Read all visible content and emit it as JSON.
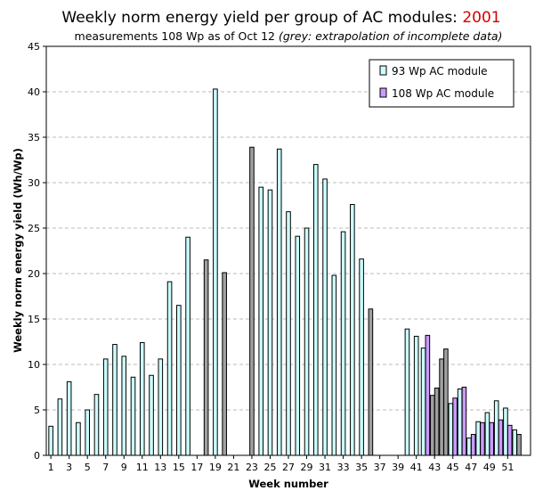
{
  "chart_data": {
    "type": "bar",
    "title": "Weekly norm energy yield per group of AC modules: ",
    "title_year": "2001",
    "subtitle": "measurements 108 Wp as of Oct 12",
    "subtitle_note": "(grey: extrapolation of incomplete data)",
    "xlabel": "Week number",
    "ylabel": "Weekly norm energy yield (Wh/Wp)",
    "ylim": [
      0,
      45
    ],
    "yticks": [
      0,
      5,
      10,
      15,
      20,
      25,
      30,
      35,
      40,
      45
    ],
    "xticks": [
      1,
      3,
      5,
      7,
      9,
      11,
      13,
      15,
      17,
      19,
      21,
      23,
      25,
      27,
      29,
      31,
      33,
      35,
      37,
      39,
      41,
      43,
      45,
      47,
      49,
      51
    ],
    "x_range": [
      1,
      53
    ],
    "grid": "horizontal dashed",
    "legend_position": "top-right",
    "colors": {
      "series_93": "#ccffff",
      "series_108": "#cc99ff",
      "extrapolated": "#a0a0a0",
      "title_year": "#d40000",
      "grid": "#bbbbbb"
    },
    "series": [
      {
        "name": "93 Wp AC module",
        "values": [
          {
            "week": 1,
            "value": 3.2
          },
          {
            "week": 2,
            "value": 6.2
          },
          {
            "week": 3,
            "value": 8.1
          },
          {
            "week": 4,
            "value": 3.6
          },
          {
            "week": 5,
            "value": 5.0
          },
          {
            "week": 6,
            "value": 6.7
          },
          {
            "week": 7,
            "value": 10.6
          },
          {
            "week": 8,
            "value": 12.2
          },
          {
            "week": 9,
            "value": 10.9
          },
          {
            "week": 10,
            "value": 8.6
          },
          {
            "week": 11,
            "value": 12.4
          },
          {
            "week": 12,
            "value": 8.8
          },
          {
            "week": 13,
            "value": 10.6
          },
          {
            "week": 14,
            "value": 19.1
          },
          {
            "week": 15,
            "value": 16.5
          },
          {
            "week": 16,
            "value": 24.0
          },
          {
            "week": 18,
            "value": 21.5,
            "extrapolated": true
          },
          {
            "week": 19,
            "value": 40.3
          },
          {
            "week": 20,
            "value": 20.1,
            "extrapolated": true
          },
          {
            "week": 23,
            "value": 33.9,
            "extrapolated": true
          },
          {
            "week": 24,
            "value": 29.5
          },
          {
            "week": 25,
            "value": 29.2
          },
          {
            "week": 26,
            "value": 33.7
          },
          {
            "week": 27,
            "value": 26.8
          },
          {
            "week": 28,
            "value": 24.1
          },
          {
            "week": 29,
            "value": 25.0
          },
          {
            "week": 30,
            "value": 32.0
          },
          {
            "week": 31,
            "value": 30.4
          },
          {
            "week": 32,
            "value": 19.8
          },
          {
            "week": 33,
            "value": 24.6
          },
          {
            "week": 34,
            "value": 27.6
          },
          {
            "week": 35,
            "value": 21.6
          },
          {
            "week": 36,
            "value": 16.1,
            "extrapolated": true
          },
          {
            "week": 40,
            "value": 13.9
          },
          {
            "week": 41,
            "value": 13.1
          },
          {
            "week": 42,
            "value": 11.8
          },
          {
            "week": 43,
            "value": 6.6,
            "extrapolated": true
          },
          {
            "week": 44,
            "value": 10.6,
            "extrapolated": true
          },
          {
            "week": 45,
            "value": 5.7
          },
          {
            "week": 46,
            "value": 7.3
          },
          {
            "week": 47,
            "value": 1.9
          },
          {
            "week": 48,
            "value": 3.7
          },
          {
            "week": 49,
            "value": 4.7
          },
          {
            "week": 50,
            "value": 6.0
          },
          {
            "week": 51,
            "value": 5.2
          },
          {
            "week": 52,
            "value": 2.8
          }
        ]
      },
      {
        "name": "108 Wp AC module",
        "values": [
          {
            "week": 42,
            "value": 13.2
          },
          {
            "week": 43,
            "value": 7.4,
            "extrapolated": true
          },
          {
            "week": 44,
            "value": 11.7,
            "extrapolated": true
          },
          {
            "week": 45,
            "value": 6.3
          },
          {
            "week": 46,
            "value": 7.5
          },
          {
            "week": 47,
            "value": 2.3
          },
          {
            "week": 48,
            "value": 3.6
          },
          {
            "week": 49,
            "value": 3.6
          },
          {
            "week": 50,
            "value": 3.9
          },
          {
            "week": 51,
            "value": 3.3
          },
          {
            "week": 52,
            "value": 2.3,
            "extrapolated": true
          }
        ]
      }
    ]
  }
}
